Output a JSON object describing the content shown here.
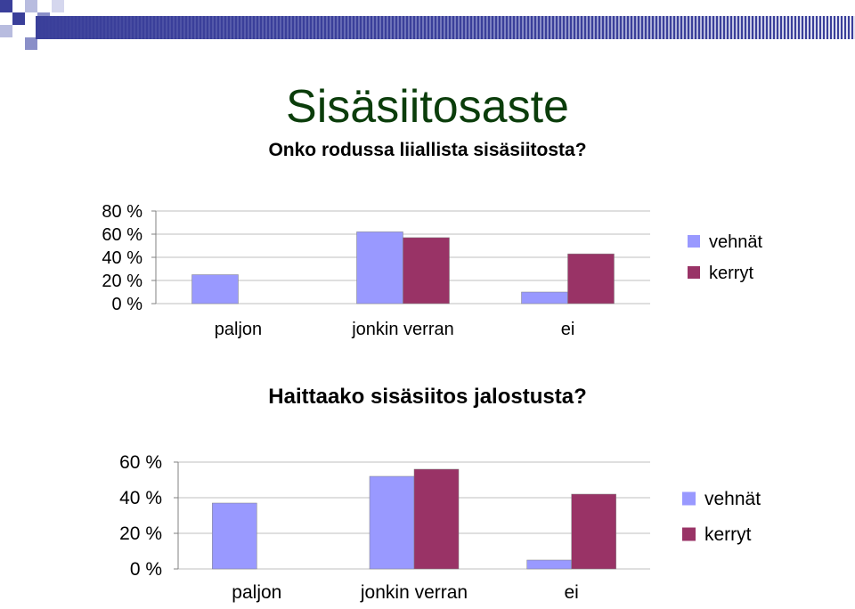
{
  "slide": {
    "title": "Sisäsiitosaste",
    "colors": {
      "title": "#0b3d0b",
      "vehnat": "#9999ff",
      "kerryt": "#993366",
      "header_bar": "#3a3f9a"
    }
  },
  "chart_data": [
    {
      "type": "bar",
      "title": "Onko rodussa liiallista sisäsiitosta?",
      "categories": [
        "paljon",
        "jonkin verran",
        "ei"
      ],
      "series": [
        {
          "name": "vehnät",
          "values": [
            25,
            62,
            10
          ]
        },
        {
          "name": "kerryt",
          "values": [
            0,
            57,
            43
          ]
        }
      ],
      "ylim": [
        0,
        80
      ],
      "yticks": [
        0,
        20,
        40,
        60,
        80
      ],
      "ytick_labels": [
        "0 %",
        "20 %",
        "40 %",
        "60 %",
        "80 %"
      ],
      "grid": true,
      "legend": "right"
    },
    {
      "type": "bar",
      "title": "Haittaako sisäsiitos jalostusta?",
      "categories": [
        "paljon",
        "jonkin verran",
        "ei"
      ],
      "series": [
        {
          "name": "vehnät",
          "values": [
            37,
            52,
            5
          ]
        },
        {
          "name": "kerryt",
          "values": [
            0,
            56,
            42
          ]
        }
      ],
      "ylim": [
        0,
        60
      ],
      "yticks": [
        0,
        20,
        40,
        60
      ],
      "ytick_labels": [
        "0 %",
        "20 %",
        "40 %",
        "60 %"
      ],
      "grid": true,
      "legend": "right"
    }
  ]
}
